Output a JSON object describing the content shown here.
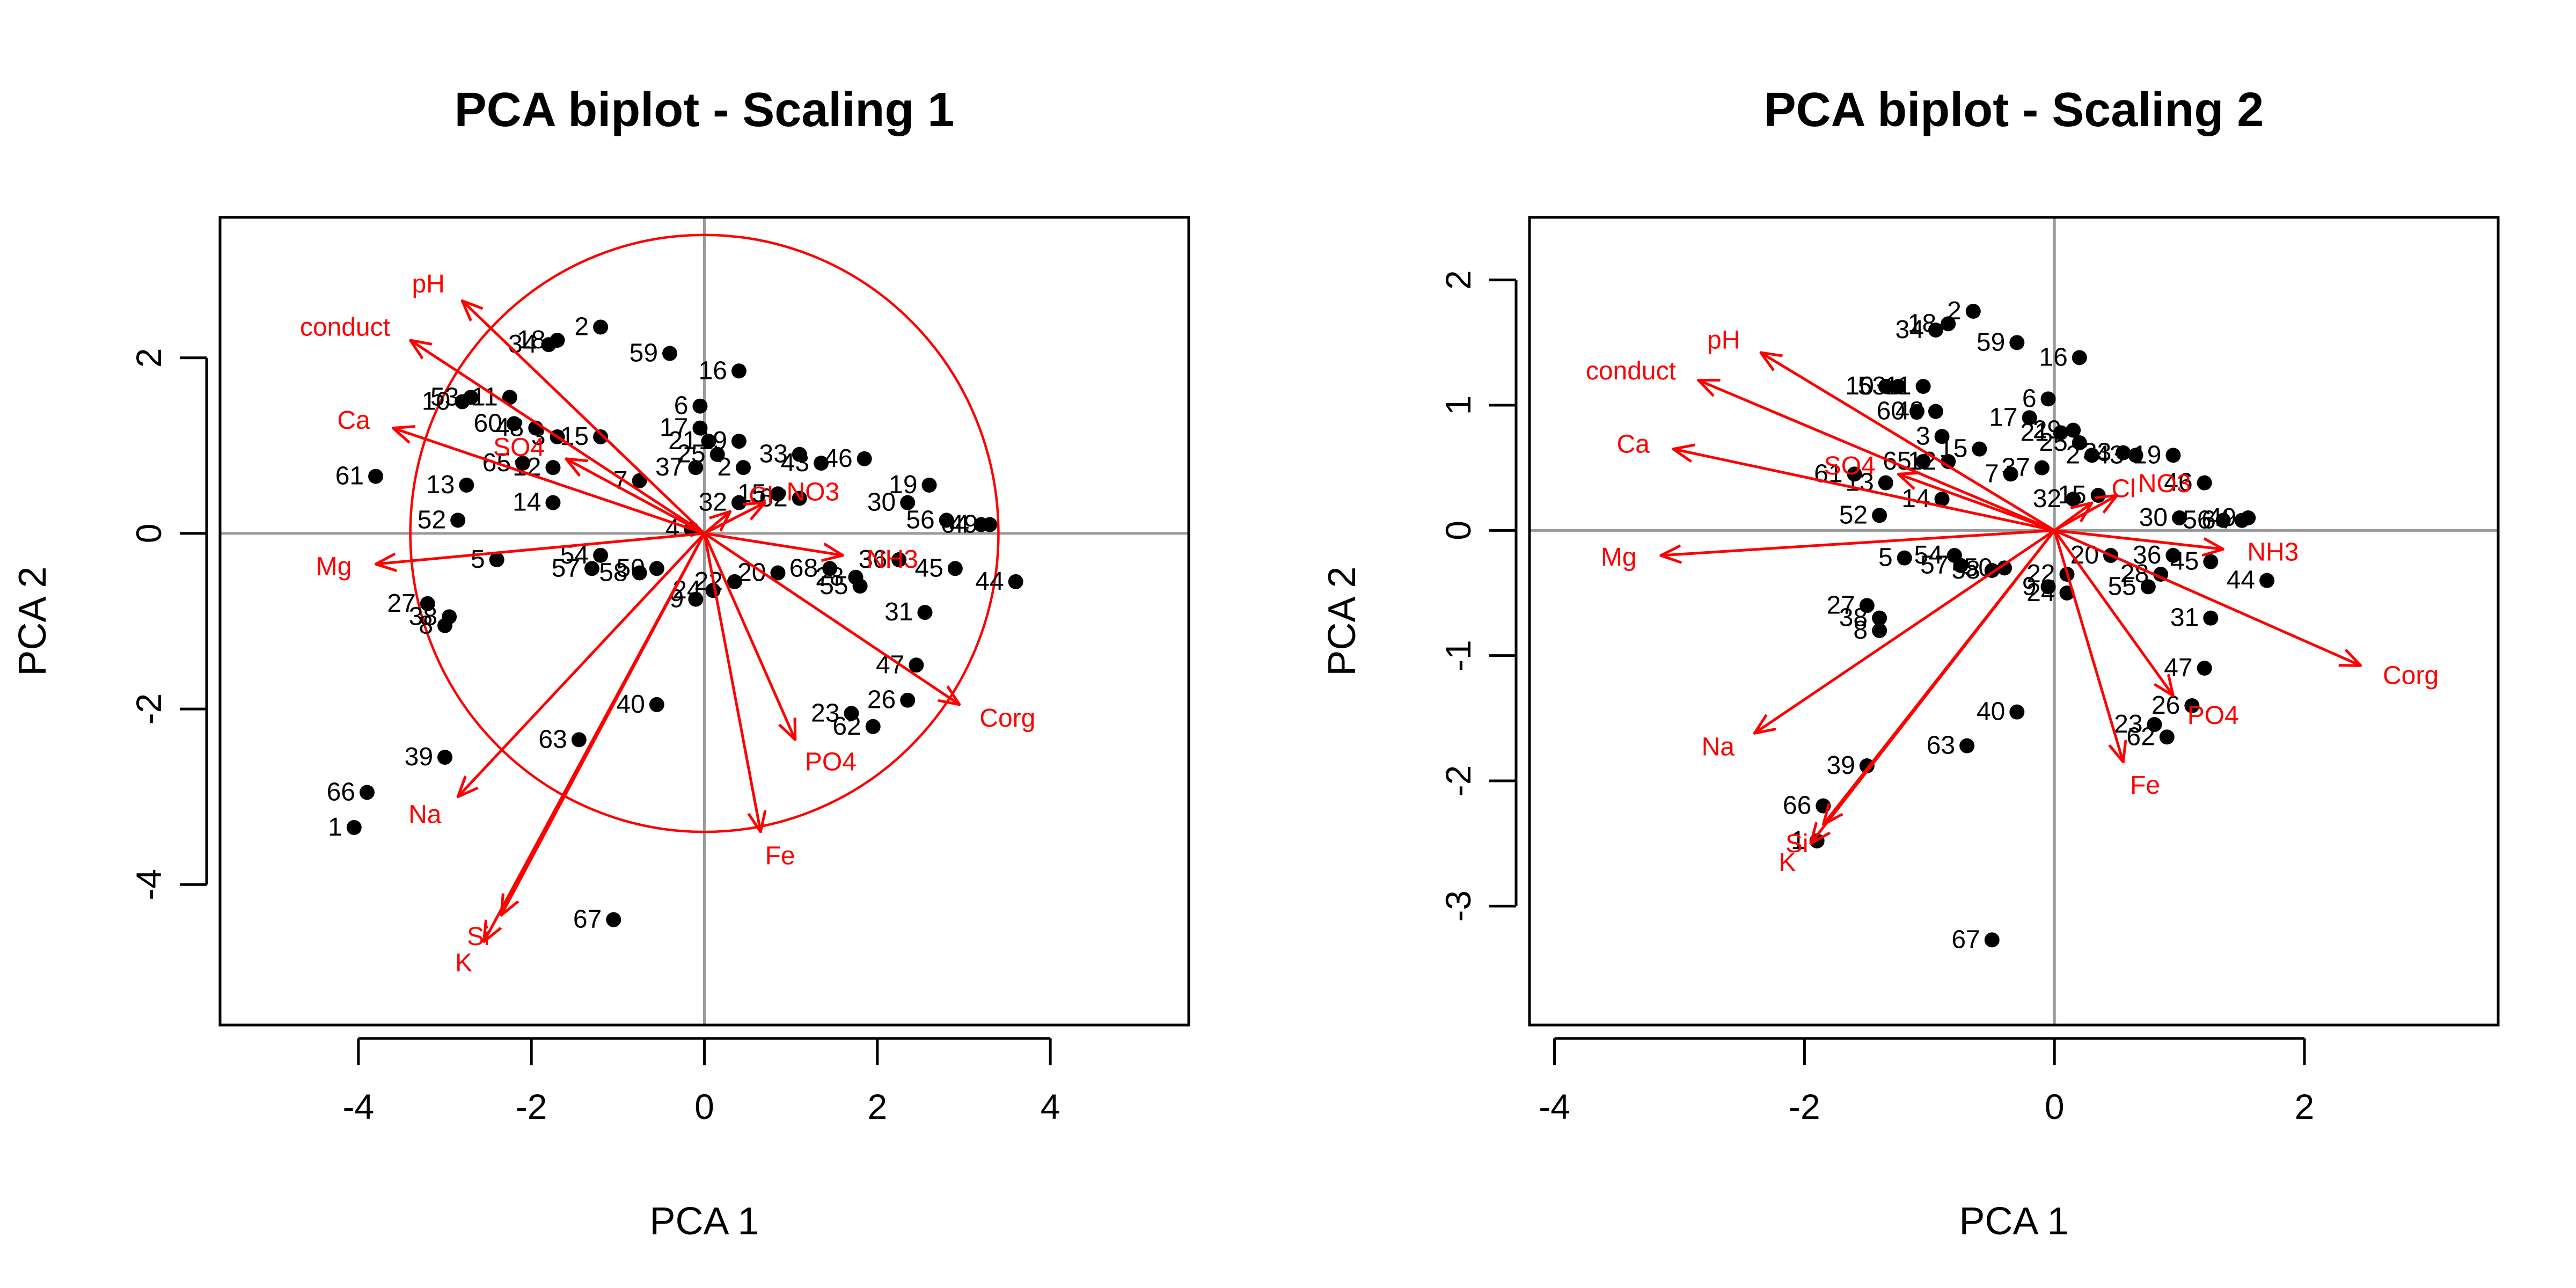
{
  "colors": {
    "points": "#000000",
    "arrows": "#ff0000",
    "zero_lines": "#9a9a9a",
    "frame": "#000000"
  },
  "chart_data": [
    {
      "type": "scatter",
      "title": "PCA biplot - Scaling 1",
      "xlabel": "PCA  1",
      "ylabel": "PCA  2",
      "xlim": [
        -5.6,
        5.6
      ],
      "ylim": [
        -5.6,
        3.6
      ],
      "xticks": [
        -4,
        -2,
        0,
        2,
        4
      ],
      "yticks": [
        -4,
        -2,
        0,
        2
      ],
      "zero_lines": true,
      "grid": false,
      "circle": {
        "radius": 3.4
      },
      "sites": [
        {
          "label": "18",
          "x": -1.7,
          "y": 2.2
        },
        {
          "label": "34",
          "x": -1.8,
          "y": 2.15
        },
        {
          "label": "2",
          "x": -1.2,
          "y": 2.35
        },
        {
          "label": "59",
          "x": -0.4,
          "y": 2.05
        },
        {
          "label": "16",
          "x": 0.4,
          "y": 1.85
        },
        {
          "label": "6",
          "x": -0.05,
          "y": 1.45
        },
        {
          "label": "17",
          "x": -0.05,
          "y": 1.2
        },
        {
          "label": "21",
          "x": 0.05,
          "y": 1.05
        },
        {
          "label": "19",
          "x": 0.4,
          "y": 1.05
        },
        {
          "label": "25",
          "x": 0.15,
          "y": 0.9
        },
        {
          "label": "37",
          "x": -0.1,
          "y": 0.75
        },
        {
          "label": "2",
          "x": 0.45,
          "y": 0.75
        },
        {
          "label": "33",
          "x": 1.1,
          "y": 0.9
        },
        {
          "label": "43",
          "x": 1.35,
          "y": 0.8
        },
        {
          "label": "46",
          "x": 1.85,
          "y": 0.85
        },
        {
          "label": "19",
          "x": 2.6,
          "y": 0.55
        },
        {
          "label": "30",
          "x": 2.35,
          "y": 0.35
        },
        {
          "label": "56",
          "x": 2.8,
          "y": 0.15
        },
        {
          "label": "64",
          "x": 3.2,
          "y": 0.1
        },
        {
          "label": "49",
          "x": 3.3,
          "y": 0.1
        },
        {
          "label": "44",
          "x": 3.6,
          "y": -0.55
        },
        {
          "label": "45",
          "x": 2.9,
          "y": -0.4
        },
        {
          "label": "36",
          "x": 2.25,
          "y": -0.3
        },
        {
          "label": "28",
          "x": 1.75,
          "y": -0.5
        },
        {
          "label": "68",
          "x": 1.45,
          "y": -0.4
        },
        {
          "label": "55",
          "x": 1.8,
          "y": -0.6
        },
        {
          "label": "31",
          "x": 2.55,
          "y": -0.9
        },
        {
          "label": "20",
          "x": 0.85,
          "y": -0.45
        },
        {
          "label": "32",
          "x": 0.4,
          "y": 0.35
        },
        {
          "label": "15",
          "x": 0.85,
          "y": 0.45
        },
        {
          "label": "62",
          "x": 1.1,
          "y": 0.4
        },
        {
          "label": "4",
          "x": -0.15,
          "y": 0.05
        },
        {
          "label": "9",
          "x": -0.1,
          "y": -0.75
        },
        {
          "label": "22",
          "x": 0.35,
          "y": -0.55
        },
        {
          "label": "24",
          "x": 0.1,
          "y": -0.65
        },
        {
          "label": "47",
          "x": 2.45,
          "y": -1.5
        },
        {
          "label": "26",
          "x": 2.35,
          "y": -1.9
        },
        {
          "label": "23",
          "x": 1.7,
          "y": -2.05
        },
        {
          "label": "62",
          "x": 1.95,
          "y": -2.2
        },
        {
          "label": "40",
          "x": -0.55,
          "y": -1.95
        },
        {
          "label": "63",
          "x": -1.45,
          "y": -2.35
        },
        {
          "label": "39",
          "x": -3.0,
          "y": -2.55
        },
        {
          "label": "66",
          "x": -3.9,
          "y": -2.95
        },
        {
          "label": "1",
          "x": -4.05,
          "y": -3.35
        },
        {
          "label": "67",
          "x": -1.05,
          "y": -4.4
        },
        {
          "label": "27",
          "x": -3.2,
          "y": -0.8
        },
        {
          "label": "38",
          "x": -2.95,
          "y": -0.95
        },
        {
          "label": "8",
          "x": -3.0,
          "y": -1.05
        },
        {
          "label": "5",
          "x": -2.4,
          "y": -0.3
        },
        {
          "label": "54",
          "x": -1.2,
          "y": -0.25
        },
        {
          "label": "57",
          "x": -1.3,
          "y": -0.4
        },
        {
          "label": "58",
          "x": -0.75,
          "y": -0.45
        },
        {
          "label": "50",
          "x": -0.55,
          "y": -0.4
        },
        {
          "label": "61",
          "x": -3.8,
          "y": 0.65
        },
        {
          "label": "13",
          "x": -2.75,
          "y": 0.55
        },
        {
          "label": "52",
          "x": -2.85,
          "y": 0.15
        },
        {
          "label": "14",
          "x": -1.75,
          "y": 0.35
        },
        {
          "label": "10",
          "x": -2.8,
          "y": 1.5
        },
        {
          "label": "53",
          "x": -2.7,
          "y": 1.55
        },
        {
          "label": "11",
          "x": -2.25,
          "y": 1.55
        },
        {
          "label": "60",
          "x": -2.2,
          "y": 1.25
        },
        {
          "label": "48",
          "x": -1.95,
          "y": 1.2
        },
        {
          "label": "65",
          "x": -2.1,
          "y": 0.8
        },
        {
          "label": "12",
          "x": -1.75,
          "y": 0.75
        },
        {
          "label": "3",
          "x": -1.7,
          "y": 1.1
        },
        {
          "label": "15",
          "x": -1.2,
          "y": 1.1
        },
        {
          "label": "7",
          "x": -0.75,
          "y": 0.6
        }
      ],
      "variables": [
        {
          "label": "pH",
          "x": -2.8,
          "y": 2.65
        },
        {
          "label": "conduct",
          "x": -3.4,
          "y": 2.2
        },
        {
          "label": "Ca",
          "x": -3.6,
          "y": 1.2
        },
        {
          "label": "SO4",
          "x": -1.6,
          "y": 0.85
        },
        {
          "label": "Mg",
          "x": -3.8,
          "y": -0.35
        },
        {
          "label": "Cl",
          "x": 0.3,
          "y": 0.25
        },
        {
          "label": "NO3",
          "x": 0.7,
          "y": 0.35
        },
        {
          "label": "NH3",
          "x": 1.6,
          "y": -0.25
        },
        {
          "label": "Corg",
          "x": 2.95,
          "y": -1.95
        },
        {
          "label": "PO4",
          "x": 1.05,
          "y": -2.35
        },
        {
          "label": "Fe",
          "x": 0.65,
          "y": -3.4
        },
        {
          "label": "Na",
          "x": -2.85,
          "y": -3.0
        },
        {
          "label": "Si",
          "x": -2.35,
          "y": -4.35
        },
        {
          "label": "K",
          "x": -2.55,
          "y": -4.65
        }
      ]
    },
    {
      "type": "scatter",
      "title": "PCA biplot - Scaling 2",
      "xlabel": "PCA  1",
      "ylabel": "PCA  2",
      "xlim": [
        -4.2,
        3.55
      ],
      "ylim": [
        -3.95,
        2.5
      ],
      "xticks": [
        -4,
        -2,
        0,
        2
      ],
      "yticks": [
        -3,
        -2,
        -1,
        0,
        1,
        2
      ],
      "zero_lines": true,
      "grid": false,
      "sites": [
        {
          "label": "18",
          "x": -0.85,
          "y": 1.65
        },
        {
          "label": "34",
          "x": -0.95,
          "y": 1.6
        },
        {
          "label": "2",
          "x": -0.65,
          "y": 1.75
        },
        {
          "label": "59",
          "x": -0.3,
          "y": 1.5
        },
        {
          "label": "16",
          "x": 0.2,
          "y": 1.38
        },
        {
          "label": "6",
          "x": -0.05,
          "y": 1.05
        },
        {
          "label": "17",
          "x": -0.2,
          "y": 0.9
        },
        {
          "label": "21",
          "x": 0.05,
          "y": 0.78
        },
        {
          "label": "29",
          "x": 0.15,
          "y": 0.8
        },
        {
          "label": "25",
          "x": 0.2,
          "y": 0.7
        },
        {
          "label": "37",
          "x": -0.1,
          "y": 0.5
        },
        {
          "label": "2",
          "x": 0.3,
          "y": 0.6
        },
        {
          "label": "33",
          "x": 0.55,
          "y": 0.62
        },
        {
          "label": "43",
          "x": 0.65,
          "y": 0.6
        },
        {
          "label": "19",
          "x": 0.95,
          "y": 0.6
        },
        {
          "label": "46",
          "x": 1.2,
          "y": 0.38
        },
        {
          "label": "30",
          "x": 1.0,
          "y": 0.1
        },
        {
          "label": "56",
          "x": 1.35,
          "y": 0.08
        },
        {
          "label": "64",
          "x": 1.5,
          "y": 0.08
        },
        {
          "label": "49",
          "x": 1.55,
          "y": 0.1
        },
        {
          "label": "44",
          "x": 1.7,
          "y": -0.4
        },
        {
          "label": "45",
          "x": 1.25,
          "y": -0.25
        },
        {
          "label": "36",
          "x": 0.95,
          "y": -0.2
        },
        {
          "label": "28",
          "x": 0.85,
          "y": -0.35
        },
        {
          "label": "55",
          "x": 0.75,
          "y": -0.45
        },
        {
          "label": "31",
          "x": 1.25,
          "y": -0.7
        },
        {
          "label": "20",
          "x": 0.45,
          "y": -0.2
        },
        {
          "label": "32",
          "x": 0.15,
          "y": 0.25
        },
        {
          "label": "15",
          "x": 0.35,
          "y": 0.28
        },
        {
          "label": "9",
          "x": -0.05,
          "y": -0.45
        },
        {
          "label": "22",
          "x": 0.1,
          "y": -0.35
        },
        {
          "label": "24",
          "x": 0.1,
          "y": -0.5
        },
        {
          "label": "47",
          "x": 1.2,
          "y": -1.1
        },
        {
          "label": "26",
          "x": 1.1,
          "y": -1.4
        },
        {
          "label": "23",
          "x": 0.8,
          "y": -1.55
        },
        {
          "label": "62",
          "x": 0.9,
          "y": -1.65
        },
        {
          "label": "40",
          "x": -0.3,
          "y": -1.45
        },
        {
          "label": "63",
          "x": -0.7,
          "y": -1.72
        },
        {
          "label": "39",
          "x": -1.5,
          "y": -1.88
        },
        {
          "label": "66",
          "x": -1.85,
          "y": -2.2
        },
        {
          "label": "1",
          "x": -1.9,
          "y": -2.48
        },
        {
          "label": "67",
          "x": -0.5,
          "y": -3.27
        },
        {
          "label": "27",
          "x": -1.5,
          "y": -0.6
        },
        {
          "label": "38",
          "x": -1.4,
          "y": -0.7
        },
        {
          "label": "8",
          "x": -1.4,
          "y": -0.8
        },
        {
          "label": "5",
          "x": -1.2,
          "y": -0.22
        },
        {
          "label": "54",
          "x": -0.8,
          "y": -0.2
        },
        {
          "label": "57",
          "x": -0.75,
          "y": -0.28
        },
        {
          "label": "58",
          "x": -0.5,
          "y": -0.32
        },
        {
          "label": "50",
          "x": -0.4,
          "y": -0.3
        },
        {
          "label": "61",
          "x": -1.6,
          "y": 0.45
        },
        {
          "label": "13",
          "x": -1.35,
          "y": 0.38
        },
        {
          "label": "52",
          "x": -1.4,
          "y": 0.12
        },
        {
          "label": "14",
          "x": -0.9,
          "y": 0.25
        },
        {
          "label": "10",
          "x": -1.35,
          "y": 1.15
        },
        {
          "label": "53",
          "x": -1.25,
          "y": 1.15
        },
        {
          "label": "11",
          "x": -1.05,
          "y": 1.15
        },
        {
          "label": "60",
          "x": -1.1,
          "y": 0.95
        },
        {
          "label": "48",
          "x": -0.95,
          "y": 0.95
        },
        {
          "label": "65",
          "x": -1.05,
          "y": 0.55
        },
        {
          "label": "12",
          "x": -0.85,
          "y": 0.55
        },
        {
          "label": "3",
          "x": -0.9,
          "y": 0.75
        },
        {
          "label": "15",
          "x": -0.6,
          "y": 0.65
        },
        {
          "label": "7",
          "x": -0.35,
          "y": 0.45
        }
      ],
      "variables": [
        {
          "label": "pH",
          "x": -2.35,
          "y": 1.42
        },
        {
          "label": "conduct",
          "x": -2.85,
          "y": 1.2
        },
        {
          "label": "Ca",
          "x": -3.05,
          "y": 0.65
        },
        {
          "label": "SO4",
          "x": -1.25,
          "y": 0.45
        },
        {
          "label": "Mg",
          "x": -3.15,
          "y": -0.2
        },
        {
          "label": "Cl",
          "x": 0.3,
          "y": 0.22
        },
        {
          "label": "NO3",
          "x": 0.5,
          "y": 0.28
        },
        {
          "label": "NH3",
          "x": 1.35,
          "y": -0.15
        },
        {
          "label": "Corg",
          "x": 2.45,
          "y": -1.08
        },
        {
          "label": "PO4",
          "x": 0.95,
          "y": -1.32
        },
        {
          "label": "Fe",
          "x": 0.55,
          "y": -1.85
        },
        {
          "label": "Na",
          "x": -2.4,
          "y": -1.62
        },
        {
          "label": "Si",
          "x": -1.85,
          "y": -2.35
        },
        {
          "label": "K",
          "x": -1.95,
          "y": -2.5
        }
      ]
    }
  ]
}
